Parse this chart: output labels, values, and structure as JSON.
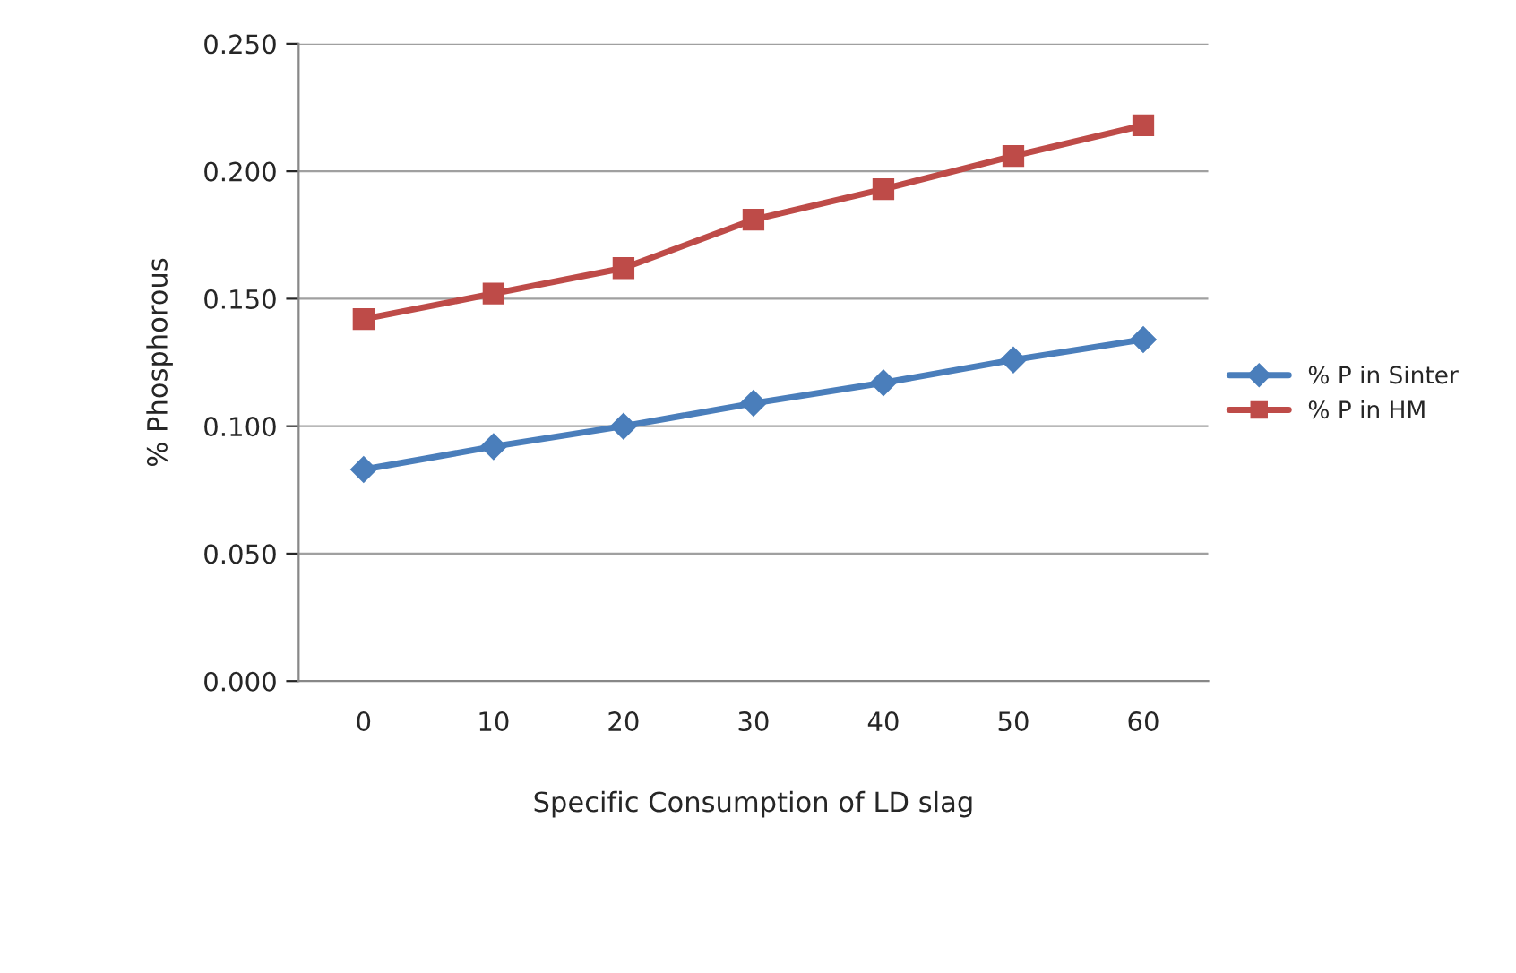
{
  "chart_data": {
    "type": "line",
    "xlabel": "Specific Consumption of LD slag",
    "ylabel": "% Phosphorous",
    "categories": [
      "0",
      "10",
      "20",
      "30",
      "40",
      "50",
      "60"
    ],
    "series": [
      {
        "name": "% P in Sinter",
        "color": "#4a7ebb",
        "marker": "diamond",
        "values": [
          0.083,
          0.092,
          0.1,
          0.109,
          0.117,
          0.126,
          0.134
        ]
      },
      {
        "name": "% P in HM",
        "color": "#be4b48",
        "marker": "square",
        "values": [
          0.142,
          0.152,
          0.162,
          0.181,
          0.193,
          0.206,
          0.218
        ]
      }
    ],
    "ylim": [
      0,
      0.25
    ],
    "yticks": [
      {
        "value": 0,
        "label": "0.000"
      },
      {
        "value": 0.05,
        "label": "0.050"
      },
      {
        "value": 0.1,
        "label": "0.100"
      },
      {
        "value": 0.15,
        "label": "0.150"
      },
      {
        "value": 0.2,
        "label": "0.200"
      },
      {
        "value": 0.25,
        "label": "0.250"
      }
    ],
    "grid": "y",
    "legend": "right",
    "line_style": "solid"
  }
}
